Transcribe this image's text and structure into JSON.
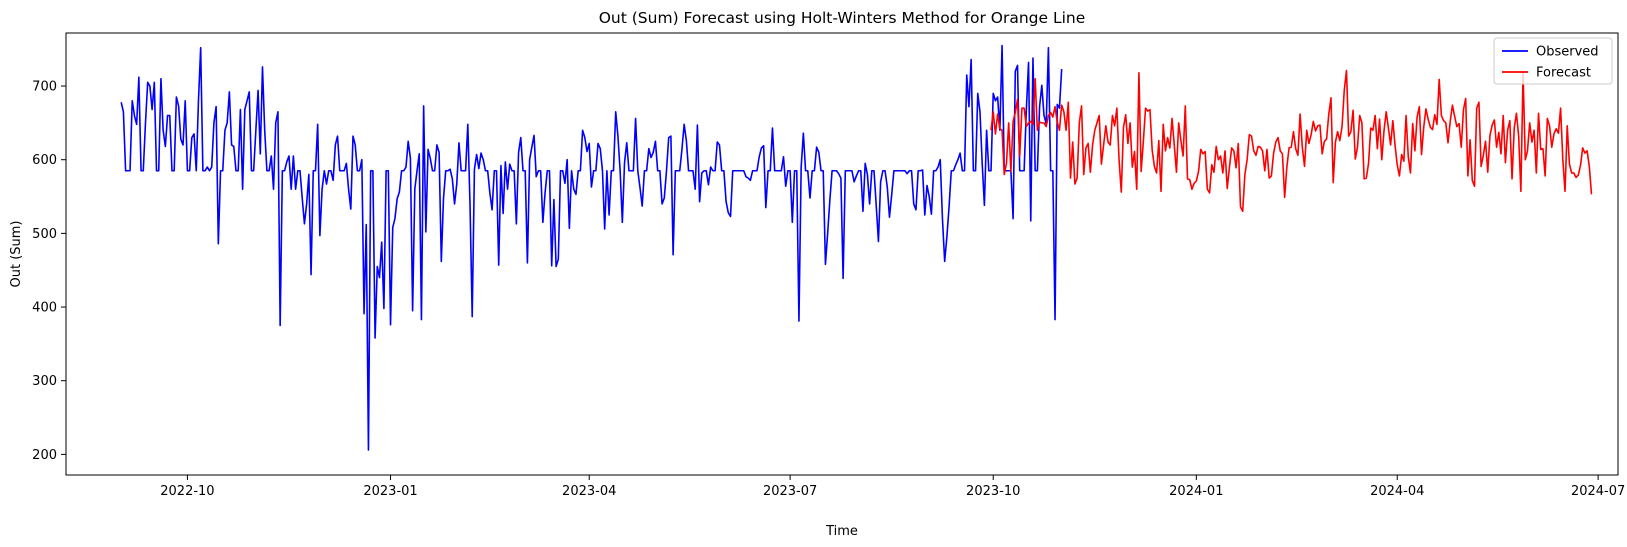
{
  "chart_data": {
    "type": "line",
    "title": "Out (Sum) Forecast using Holt-Winters Method for Orange Line",
    "xlabel": "Time",
    "ylabel": "Out (Sum)",
    "x_axis": "date",
    "xlim": [
      "2022-08-07",
      "2024-07-10"
    ],
    "ylim": [
      172,
      772
    ],
    "x_ticks": [
      {
        "date": "2022-10-01",
        "label": "2022-10"
      },
      {
        "date": "2023-01-01",
        "label": "2023-01"
      },
      {
        "date": "2023-04-01",
        "label": "2023-04"
      },
      {
        "date": "2023-07-01",
        "label": "2023-07"
      },
      {
        "date": "2023-10-01",
        "label": "2023-10"
      },
      {
        "date": "2024-01-01",
        "label": "2024-01"
      },
      {
        "date": "2024-04-01",
        "label": "2024-04"
      },
      {
        "date": "2024-07-01",
        "label": "2024-07"
      }
    ],
    "y_ticks": [
      200,
      300,
      400,
      500,
      600,
      700
    ],
    "grid": false,
    "legend_position": "top-right",
    "series": [
      {
        "name": "Observed",
        "color": "#0000ff",
        "start_date": "2022-09-01",
        "values": [
          678,
          665,
          585,
          585,
          585,
          680,
          660,
          648,
          712,
          585,
          585,
          650,
          705,
          700,
          668,
          705,
          585,
          585,
          710,
          640,
          618,
          660,
          660,
          585,
          585,
          685,
          673,
          628,
          620,
          680,
          585,
          585,
          630,
          635,
          585,
          680,
          752,
          585,
          585,
          590,
          585,
          590,
          650,
          672,
          486,
          585,
          585,
          640,
          650,
          692,
          620,
          618,
          585,
          585,
          668,
          560,
          668,
          680,
          692,
          585,
          585,
          640,
          694,
          608,
          726,
          640,
          585,
          585,
          605,
          560,
          650,
          665,
          375,
          585,
          585,
          597,
          605,
          560,
          605,
          560,
          585,
          585,
          548,
          513,
          540,
          580,
          444,
          585,
          585,
          648,
          497,
          560,
          585,
          567,
          585,
          585,
          572,
          620,
          632,
          585,
          585,
          585,
          595,
          560,
          533,
          632,
          620,
          585,
          585,
          600,
          391,
          512,
          206,
          585,
          585,
          358,
          455,
          440,
          488,
          398,
          585,
          585,
          376,
          508,
          520,
          547,
          556,
          585,
          585,
          590,
          625,
          602,
          395,
          560,
          585,
          608,
          383,
          673,
          502,
          614,
          602,
          585,
          585,
          620,
          610,
          462,
          548,
          585,
          585,
          587,
          574,
          540,
          567,
          623,
          585,
          585,
          585,
          648,
          540,
          387,
          587,
          607,
          588,
          609,
          600,
          585,
          585,
          555,
          532,
          585,
          585,
          457,
          592,
          527,
          597,
          560,
          594,
          585,
          585,
          513,
          610,
          630,
          585,
          585,
          460,
          600,
          617,
          633,
          577,
          585,
          585,
          515,
          555,
          585,
          585,
          456,
          546,
          455,
          465,
          585,
          585,
          568,
          600,
          507,
          585,
          560,
          553,
          585,
          585,
          640,
          630,
          611,
          622,
          563,
          585,
          585,
          622,
          615,
          585,
          506,
          585,
          525,
          585,
          585,
          665,
          632,
          585,
          515,
          596,
          623,
          585,
          585,
          585,
          656,
          585,
          562,
          537,
          585,
          585,
          615,
          603,
          610,
          625,
          585,
          585,
          540,
          548,
          585,
          630,
          632,
          471,
          585,
          585,
          585,
          614,
          648,
          626,
          585,
          585,
          585,
          560,
          647,
          543,
          582,
          585,
          585,
          566,
          590,
          585,
          585,
          624,
          620,
          585,
          585,
          543,
          528,
          523,
          585,
          585,
          585,
          585,
          585,
          585,
          577,
          575,
          572,
          585,
          585,
          585,
          604,
          616,
          619,
          535,
          585,
          585,
          643,
          585,
          585,
          585,
          585,
          604,
          564,
          585,
          585,
          515,
          585,
          585,
          381,
          590,
          636,
          585,
          585,
          548,
          585,
          585,
          617,
          610,
          585,
          585,
          458,
          500,
          545,
          585,
          585,
          585,
          581,
          575,
          439,
          585,
          585,
          585,
          585,
          570,
          578,
          585,
          585,
          530,
          595,
          580,
          540,
          585,
          585,
          538,
          489,
          570,
          585,
          585,
          563,
          522,
          552,
          585,
          585,
          585,
          585,
          585,
          585,
          581,
          585,
          585,
          540,
          532,
          585,
          585,
          586,
          525,
          565,
          550,
          526,
          585,
          585,
          590,
          600,
          520,
          462,
          495,
          536,
          585,
          585,
          593,
          600,
          609,
          585,
          585,
          715,
          672,
          736,
          585,
          585,
          690,
          665,
          595,
          538,
          640,
          585,
          585,
          690,
          680,
          685,
          640,
          755,
          585,
          585,
          585,
          585,
          520,
          720,
          728,
          585,
          585,
          585,
          668,
          732,
          517,
          738,
          585,
          585,
          672,
          701,
          660,
          649,
          752,
          585,
          585,
          383,
          675,
          670,
          723
        ]
      },
      {
        "name": "Forecast",
        "color": "#ff0000",
        "start_date": "2023-09-30",
        "values": [
          640,
          665,
          635,
          662,
          642,
          640,
          580,
          595,
          650,
          584,
          652,
          664,
          682,
          605,
          670,
          670,
          645,
          650,
          652,
          648,
          710,
          640,
          651,
          650,
          650,
          645,
          660,
          664,
          658,
          672,
          651,
          640,
          674,
          665,
          640,
          678,
          575,
          624,
          567,
          575,
          650,
          673,
          580,
          616,
          622,
          583,
          620,
          640,
          650,
          660,
          594,
          620,
          646,
          624,
          620,
          660,
          646,
          670,
          600,
          556,
          644,
          661,
          622,
          650,
          590,
          611,
          560,
          718,
          584,
          625,
          670,
          666,
          668,
          613,
          591,
          582,
          626,
          557,
          648,
          612,
          630,
          616,
          656,
          620,
          583,
          650,
          626,
          605,
          673,
          574,
          573,
          560,
          568,
          571,
          584,
          614,
          608,
          611,
          560,
          555,
          593,
          583,
          618,
          600,
          605,
          582,
          612,
          561,
          590,
          616,
          612,
          589,
          622,
          536,
          530,
          580,
          600,
          634,
          632,
          612,
          606,
          618,
          617,
          612,
          585,
          614,
          575,
          578,
          609,
          624,
          630,
          612,
          608,
          549,
          590,
          616,
          617,
          638,
          615,
          606,
          662,
          617,
          591,
          640,
          622,
          634,
          652,
          639,
          646,
          647,
          608,
          625,
          628,
          662,
          684,
          569,
          624,
          638,
          626,
          645,
          694,
          721,
          632,
          638,
          667,
          601,
          617,
          660,
          650,
          574,
          575,
          595,
          643,
          640,
          660,
          615,
          655,
          600,
          639,
          665,
          643,
          620,
          653,
          620,
          593,
          578,
          607,
          598,
          660,
          604,
          582,
          649,
          612,
          658,
          672,
          607,
          644,
          669,
          655,
          644,
          641,
          661,
          648,
          709,
          660,
          653,
          650,
          623,
          652,
          674,
          659,
          645,
          649,
          617,
          668,
          683,
          578,
          627,
          572,
          564,
          670,
          678,
          591,
          606,
          625,
          583,
          633,
          647,
          654,
          617,
          637,
          608,
          660,
          596,
          640,
          653,
          574,
          643,
          663,
          632,
          557,
          718,
          600,
          612,
          650,
          624,
          640,
          582,
          663,
          614,
          615,
          578,
          656,
          646,
          617,
          635,
          642,
          636,
          670,
          600,
          557,
          646,
          594,
          582,
          582,
          576,
          579,
          592,
          616,
          609,
          612,
          591,
          553
        ]
      }
    ]
  }
}
